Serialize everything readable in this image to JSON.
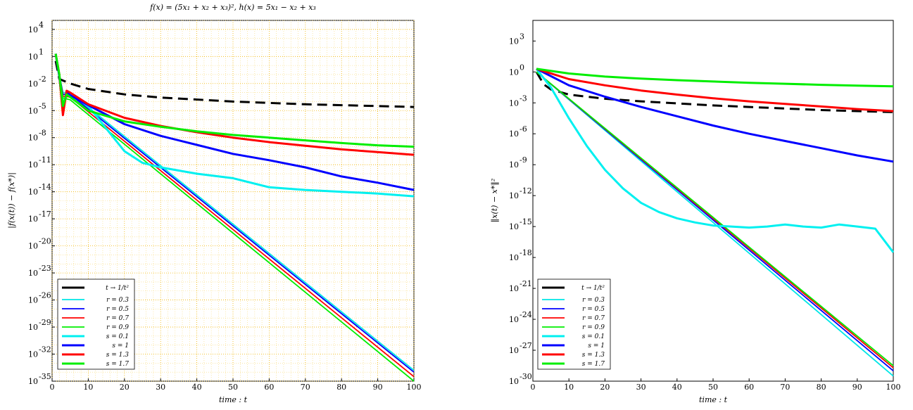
{
  "figure_title": "f(x) = (5x₁ + x₂ + x₃)²,  h(x) = 5x₁ − x₂ + x₃",
  "legend_labels": [
    "t → 1/t²",
    "r = 0.3",
    "r = 0.5",
    "r = 0.7",
    "r = 0.9",
    "s = 0.1",
    "s = 1",
    "s = 1.3",
    "s = 1.7"
  ],
  "chart_data": [
    {
      "type": "line",
      "title": "f(x) = (5x₁ + x₂ + x₃)²,  h(x) = 5x₁ − x₂ + x₃",
      "xlabel": "time : t",
      "ylabel": "|f(x(t)) − f(x*)|",
      "y_scale": "log",
      "xlim": [
        0,
        100
      ],
      "ylim_exp": [
        -35,
        5
      ],
      "x_ticks": [
        "0",
        "10",
        "20",
        "30",
        "40",
        "50",
        "60",
        "70",
        "80",
        "90",
        "100"
      ],
      "y_ticks": [
        "10^4",
        "10^1",
        "10^-2",
        "10^-5",
        "10^-8",
        "10^-11",
        "10^-14",
        "10^-17",
        "10^-20",
        "10^-23",
        "10^-26",
        "10^-29",
        "10^-32",
        "10^-35"
      ],
      "grid": "major + minor, orange dotted",
      "legend": "lower-left",
      "series": [
        {
          "name": "t → 1/t²",
          "color": "#000000",
          "width": 3,
          "dash": "14,8",
          "x": [
            1,
            2,
            5,
            10,
            20,
            30,
            50,
            70,
            100
          ],
          "log10_y": [
            0.5,
            -1.5,
            -2.0,
            -2.6,
            -3.2,
            -3.55,
            -4.0,
            -4.3,
            -4.6
          ]
        },
        {
          "name": "r = 0.3",
          "color": "#00e6e6",
          "width": 1.8,
          "x": [
            1,
            2,
            3,
            5,
            100
          ],
          "log10_y": [
            1.3,
            -1.0,
            -3.0,
            -3.0,
            -33.8
          ]
        },
        {
          "name": "r = 0.5",
          "color": "#0000ff",
          "width": 1.8,
          "x": [
            1,
            2,
            3,
            5,
            100
          ],
          "log10_y": [
            1.3,
            -1.0,
            -3.2,
            -3.2,
            -34.0
          ]
        },
        {
          "name": "r = 0.7",
          "color": "#ff0000",
          "width": 1.8,
          "x": [
            1,
            2,
            3,
            5,
            100
          ],
          "log10_y": [
            1.3,
            -1.0,
            -3.4,
            -3.5,
            -34.5
          ]
        },
        {
          "name": "r = 0.9",
          "color": "#00ee00",
          "width": 1.8,
          "x": [
            1,
            2,
            3,
            5,
            100
          ],
          "log10_y": [
            1.3,
            -1.0,
            -3.6,
            -3.8,
            -35.0
          ]
        },
        {
          "name": "s = 0.1",
          "color": "#00f0f0",
          "width": 3,
          "x": [
            1,
            2,
            3,
            4,
            5,
            10,
            15,
            20,
            25,
            30,
            40,
            50,
            60,
            70,
            80,
            90,
            100
          ],
          "log10_y": [
            1.3,
            -1.2,
            -4.5,
            -3.0,
            -3.2,
            -4.5,
            -7.0,
            -9.5,
            -10.8,
            -11.3,
            -12.0,
            -12.5,
            -13.5,
            -13.8,
            -14.0,
            -14.2,
            -14.5
          ]
        },
        {
          "name": "s = 1",
          "color": "#0000ff",
          "width": 3,
          "x": [
            1,
            2,
            3,
            4,
            5,
            10,
            20,
            30,
            40,
            50,
            60,
            70,
            80,
            90,
            100
          ],
          "log10_y": [
            1.3,
            -1.2,
            -5.0,
            -3.0,
            -3.3,
            -4.4,
            -6.5,
            -7.8,
            -8.8,
            -9.8,
            -10.5,
            -11.3,
            -12.3,
            -13.0,
            -13.8
          ]
        },
        {
          "name": "s = 1.3",
          "color": "#ff0000",
          "width": 3,
          "x": [
            1,
            2,
            3,
            4,
            5,
            10,
            20,
            30,
            40,
            50,
            60,
            70,
            80,
            90,
            100
          ],
          "log10_y": [
            1.3,
            -1.0,
            -5.5,
            -2.8,
            -3.0,
            -4.3,
            -5.8,
            -6.7,
            -7.4,
            -8.0,
            -8.5,
            -8.9,
            -9.3,
            -9.6,
            -9.9
          ]
        },
        {
          "name": "s = 1.7",
          "color": "#00ee00",
          "width": 3,
          "x": [
            1,
            2,
            3,
            4,
            5,
            10,
            20,
            30,
            40,
            50,
            60,
            70,
            80,
            90,
            100
          ],
          "log10_y": [
            1.3,
            -1.0,
            -4.5,
            -3.2,
            -3.5,
            -5.0,
            -6.2,
            -6.8,
            -7.3,
            -7.7,
            -8.0,
            -8.3,
            -8.6,
            -8.85,
            -9.0
          ]
        }
      ]
    },
    {
      "type": "line",
      "title": "",
      "xlabel": "time : t",
      "ylabel": "‖x(t) − x*‖²",
      "y_scale": "log",
      "xlim": [
        0,
        100
      ],
      "ylim_exp": [
        -30,
        5
      ],
      "x_ticks": [
        "0",
        "10",
        "20",
        "30",
        "40",
        "50",
        "60",
        "70",
        "80",
        "90",
        "100"
      ],
      "y_ticks": [
        "10^3",
        "10^0",
        "10^-3",
        "10^-6",
        "10^-9",
        "10^-12",
        "10^-15",
        "10^-18",
        "10^-21",
        "10^-24",
        "10^-27",
        "10^-30"
      ],
      "grid": "none",
      "legend": "lower-left",
      "series": [
        {
          "name": "t → 1/t²",
          "color": "#000000",
          "width": 3,
          "dash": "14,8",
          "x": [
            1,
            3,
            5,
            10,
            20,
            30,
            40,
            50,
            60,
            70,
            80,
            90,
            100
          ],
          "log10_y": [
            0.0,
            -1.2,
            -1.7,
            -2.2,
            -2.6,
            -2.85,
            -3.05,
            -3.25,
            -3.4,
            -3.55,
            -3.7,
            -3.8,
            -3.9
          ]
        },
        {
          "name": "r = 0.3",
          "color": "#00e6e6",
          "width": 1.8,
          "x": [
            1,
            100
          ],
          "log10_y": [
            0.0,
            -29.5
          ]
        },
        {
          "name": "r = 0.5",
          "color": "#0000ff",
          "width": 1.8,
          "x": [
            1,
            100
          ],
          "log10_y": [
            0.0,
            -29.0
          ]
        },
        {
          "name": "r = 0.7",
          "color": "#ff0000",
          "width": 1.8,
          "x": [
            1,
            100
          ],
          "log10_y": [
            0.0,
            -28.7
          ]
        },
        {
          "name": "r = 0.9",
          "color": "#00ee00",
          "width": 1.8,
          "x": [
            1,
            100
          ],
          "log10_y": [
            0.0,
            -28.5
          ]
        },
        {
          "name": "s = 0.1",
          "color": "#00f0f0",
          "width": 3,
          "x": [
            1,
            5,
            10,
            15,
            20,
            25,
            30,
            35,
            40,
            45,
            50,
            55,
            60,
            65,
            70,
            75,
            80,
            85,
            90,
            95,
            100
          ],
          "log10_y": [
            0.3,
            -1.5,
            -4.5,
            -7.2,
            -9.5,
            -11.3,
            -12.7,
            -13.6,
            -14.2,
            -14.6,
            -14.9,
            -15.0,
            -15.1,
            -15.0,
            -14.8,
            -15.0,
            -15.1,
            -14.8,
            -15.0,
            -15.2,
            -17.5
          ]
        },
        {
          "name": "s = 1",
          "color": "#0000ff",
          "width": 3,
          "x": [
            1,
            10,
            20,
            30,
            40,
            50,
            60,
            70,
            80,
            90,
            100
          ],
          "log10_y": [
            0.3,
            -1.3,
            -2.4,
            -3.4,
            -4.3,
            -5.2,
            -6.0,
            -6.7,
            -7.4,
            -8.1,
            -8.7
          ]
        },
        {
          "name": "s = 1.3",
          "color": "#ff0000",
          "width": 3,
          "x": [
            1,
            10,
            20,
            30,
            40,
            50,
            60,
            70,
            80,
            90,
            100
          ],
          "log10_y": [
            0.3,
            -0.7,
            -1.3,
            -1.8,
            -2.2,
            -2.55,
            -2.85,
            -3.1,
            -3.35,
            -3.6,
            -3.8
          ]
        },
        {
          "name": "s = 1.7",
          "color": "#00ee00",
          "width": 3,
          "x": [
            1,
            10,
            20,
            30,
            40,
            50,
            60,
            70,
            80,
            90,
            100
          ],
          "log10_y": [
            0.3,
            -0.15,
            -0.45,
            -0.65,
            -0.8,
            -0.93,
            -1.05,
            -1.15,
            -1.25,
            -1.33,
            -1.4
          ]
        }
      ]
    }
  ]
}
